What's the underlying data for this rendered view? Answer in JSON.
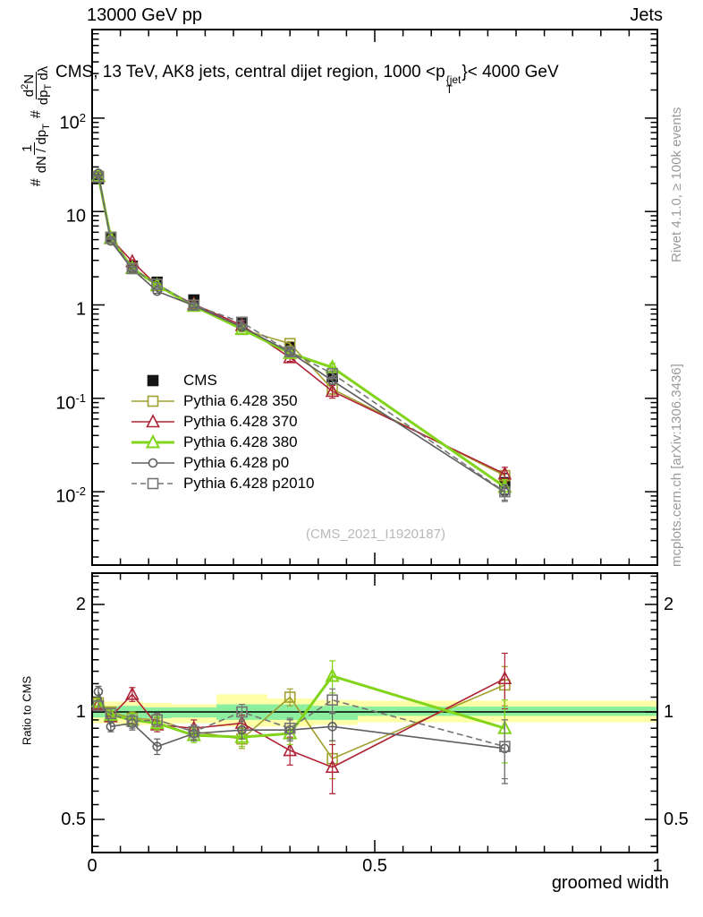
{
  "header": {
    "beam": "13000 GeV pp",
    "topic": "Jets"
  },
  "title": {
    "prefix": "CMS, 13 TeV, AK8 jets, central dijet region, 1000 <p",
    "sup": "{jet",
    "sub": "T",
    "suffix": "}< 4000 GeV"
  },
  "side": {
    "rivet": "Rivet 4.1.0, ≥ 100k events",
    "mcplots": "mcplots.cern.ch [arXiv:1306.3436]"
  },
  "watermark": "(CMS_2021_I1920187)",
  "ylabel": {
    "hash1": "#",
    "frac1_num": "1",
    "frac1_den_a": "dN / dp",
    "frac1_den_sub": "T",
    "hash2": "#",
    "frac2_num_a": "d",
    "frac2_num_sup": "2",
    "frac2_num_b": "N",
    "frac2_den_a": "dp",
    "frac2_den_sub": "T",
    "frac2_den_b": " dλ"
  },
  "axes": {
    "xlabel": "groomed width",
    "ratio_ylabel": "Ratio to CMS",
    "main_yticks": [
      {
        "base": "10",
        "exp": "2"
      },
      {
        "base": "10",
        "exp": ""
      },
      {
        "base": "1",
        "exp": ""
      },
      {
        "base": "10",
        "exp": "-1"
      },
      {
        "base": "10",
        "exp": "-2"
      }
    ],
    "xticks": [
      "0",
      "0.5",
      "1"
    ],
    "ratio_yticks": [
      "2",
      "1",
      "0.5"
    ]
  },
  "legend": {
    "items": [
      {
        "label": "CMS",
        "marker": "square-filled",
        "color": "#151515",
        "line": "none"
      },
      {
        "label": "Pythia 6.428 350",
        "marker": "square-open",
        "color": "#a2a02f",
        "line": "solid"
      },
      {
        "label": "Pythia 6.428 370",
        "marker": "triangle-open",
        "color": "#ae2337",
        "line": "solid"
      },
      {
        "label": "Pythia 6.428 380",
        "marker": "triangle-open",
        "color": "#82d41b",
        "line": "solid-thick"
      },
      {
        "label": "Pythia 6.428 p0",
        "marker": "circle-open",
        "color": "#5f5f5f",
        "line": "solid"
      },
      {
        "label": "Pythia 6.428 p2010",
        "marker": "square-open",
        "color": "#757575",
        "line": "dashed"
      }
    ]
  },
  "chart_data": {
    "type": "line",
    "xlabel": "groomed width",
    "ratio_ylabel": "Ratio to CMS",
    "xlim": [
      0,
      1
    ],
    "main_ylim_log": [
      0.0016,
      880
    ],
    "ratio_ylim_log": [
      0.404,
      2.45
    ],
    "x": [
      0.011,
      0.033,
      0.071,
      0.115,
      0.18,
      0.265,
      0.35,
      0.425,
      0.73
    ],
    "cms": {
      "name": "CMS",
      "color": "#151515",
      "values": [
        22.5,
        5.3,
        2.6,
        1.75,
        1.13,
        0.65,
        0.35,
        0.17,
        0.0125
      ],
      "rel_err": [
        0.03,
        0.03,
        0.04,
        0.04,
        0.04,
        0.05,
        0.06,
        0.08,
        0.25
      ]
    },
    "series": [
      {
        "name": "Pythia 6.428 350",
        "color": "#a2a02f",
        "marker": "square",
        "line": "solid",
        "width": 1.6,
        "ratio": [
          1.06,
          1.0,
          0.96,
          0.95,
          0.88,
          0.84,
          1.1,
          0.74,
          1.19
        ],
        "ratio_err": [
          0.03,
          0.03,
          0.04,
          0.04,
          0.04,
          0.05,
          0.06,
          0.09,
          0.15
        ]
      },
      {
        "name": "Pythia 6.428 370",
        "color": "#ae2337",
        "marker": "triangle",
        "line": "solid",
        "width": 1.6,
        "ratio": [
          1.05,
          0.97,
          1.12,
          0.92,
          0.9,
          0.93,
          0.78,
          0.7,
          1.24
        ],
        "ratio_err": [
          0.03,
          0.03,
          0.05,
          0.04,
          0.05,
          0.05,
          0.07,
          0.11,
          0.22
        ]
      },
      {
        "name": "Pythia 6.428 380",
        "color": "#82d41b",
        "marker": "triangle",
        "line": "solid",
        "width": 3,
        "ratio": [
          1.07,
          0.98,
          0.95,
          0.93,
          0.86,
          0.85,
          0.87,
          1.26,
          0.9
        ],
        "ratio_err": [
          0.03,
          0.03,
          0.04,
          0.04,
          0.04,
          0.05,
          0.06,
          0.13,
          0.18
        ]
      },
      {
        "name": "Pythia 6.428 p0",
        "color": "#5f5f5f",
        "marker": "circle",
        "line": "solid",
        "width": 1.6,
        "ratio": [
          1.14,
          0.91,
          0.93,
          0.8,
          0.87,
          0.89,
          0.89,
          0.91,
          0.79
        ],
        "ratio_err": [
          0.04,
          0.03,
          0.04,
          0.04,
          0.04,
          0.05,
          0.06,
          0.08,
          0.16
        ]
      },
      {
        "name": "Pythia 6.428 p2010",
        "color": "#757575",
        "marker": "square",
        "line": "dashed",
        "width": 1.6,
        "ratio": [
          1.04,
          0.99,
          0.94,
          0.95,
          0.88,
          1.0,
          0.9,
          1.08,
          0.8
        ],
        "ratio_err": [
          0.03,
          0.03,
          0.04,
          0.04,
          0.04,
          0.05,
          0.06,
          0.08,
          0.15
        ]
      }
    ],
    "uncertainty_bands": {
      "yellow": "#ffffa8",
      "green": "#8cef9f",
      "bins": [
        {
          "x0": 0.0,
          "x1": 0.022,
          "ylo": 0.93,
          "yhi": 1.07,
          "glo": 0.965,
          "ghi": 1.04
        },
        {
          "x0": 0.022,
          "x1": 0.045,
          "ylo": 0.93,
          "yhi": 1.07,
          "glo": 0.965,
          "ghi": 1.035
        },
        {
          "x0": 0.045,
          "x1": 0.09,
          "ylo": 0.92,
          "yhi": 1.07,
          "glo": 0.96,
          "ghi": 1.04
        },
        {
          "x0": 0.09,
          "x1": 0.14,
          "ylo": 0.92,
          "yhi": 1.06,
          "glo": 0.96,
          "ghi": 1.03
        },
        {
          "x0": 0.14,
          "x1": 0.22,
          "ylo": 0.93,
          "yhi": 1.05,
          "glo": 0.965,
          "ghi": 1.03
        },
        {
          "x0": 0.22,
          "x1": 0.31,
          "ylo": 0.91,
          "yhi": 1.12,
          "glo": 0.95,
          "ghi": 1.05
        },
        {
          "x0": 0.31,
          "x1": 0.39,
          "ylo": 0.91,
          "yhi": 1.09,
          "glo": 0.95,
          "ghi": 1.05
        },
        {
          "x0": 0.39,
          "x1": 0.47,
          "ylo": 0.92,
          "yhi": 1.08,
          "glo": 0.95,
          "ghi": 1.04
        },
        {
          "x0": 0.47,
          "x1": 1.0,
          "ylo": 0.935,
          "yhi": 1.075,
          "glo": 0.975,
          "ghi": 1.035
        }
      ]
    }
  }
}
